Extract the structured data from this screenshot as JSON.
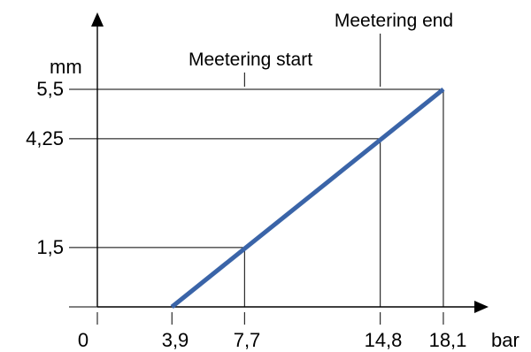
{
  "chart_data": {
    "type": "line",
    "xlabel": "bar",
    "ylabel": "mm",
    "x_ticks": [
      "0",
      "3,9",
      "7,7",
      "14,8",
      "18,1"
    ],
    "y_ticks": [
      "1,5",
      "4,25",
      "5,5"
    ],
    "xlim": [
      0,
      18.1
    ],
    "ylim": [
      0,
      5.5
    ],
    "grid": false,
    "series": [
      {
        "x": [
          3.9,
          18.1
        ],
        "y": [
          0,
          5.5
        ],
        "color": "#3a64a8"
      }
    ],
    "guide_lines": [
      {
        "x": 7.7,
        "y": 1.5
      },
      {
        "x": 14.8,
        "y": 4.25
      },
      {
        "x": 18.1,
        "y": 5.5
      }
    ],
    "annotations": [
      {
        "text": "Meetering start",
        "x": 7.7
      },
      {
        "text": "Meetering end",
        "x": 14.8
      }
    ]
  }
}
